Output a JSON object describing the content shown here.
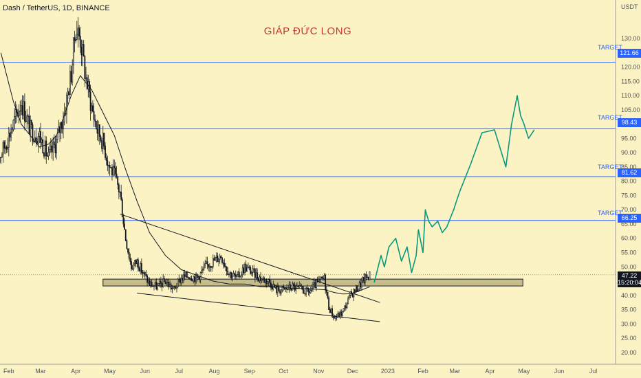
{
  "header": {
    "symbol": "Dash / TetherUS, 1D, BINANCE"
  },
  "watermark": "GIÁP ĐỨC LONG",
  "price_axis": {
    "unit": "USDT",
    "ticks": [
      "130.00",
      "125.00",
      "120.00",
      "115.00",
      "110.00",
      "105.00",
      "100.00",
      "95.00",
      "90.00",
      "85.00",
      "80.00",
      "75.00",
      "70.00",
      "65.00",
      "60.00",
      "55.00",
      "50.00",
      "45.00",
      "40.00",
      "35.00",
      "30.00",
      "25.00",
      "20.00"
    ],
    "last_price": "47.22",
    "countdown": "15:20:04"
  },
  "time_axis": {
    "labels": [
      "Feb",
      "Mar",
      "Apr",
      "May",
      "Jun",
      "Jul",
      "Aug",
      "Sep",
      "Oct",
      "Nov",
      "Dec",
      "2023",
      "Feb",
      "Mar",
      "Apr",
      "May",
      "Jun",
      "Jul"
    ]
  },
  "targets": [
    {
      "label": "TARGET",
      "price": "121.66"
    },
    {
      "label": "TARGET",
      "price": "98.43"
    },
    {
      "label": "TARGET",
      "price": "81.62"
    },
    {
      "label": "TARGET",
      "price": "66.25"
    }
  ],
  "chart_data": {
    "type": "line",
    "title": "",
    "ylim": [
      19,
      137
    ],
    "y_scale": "linear",
    "grid": false,
    "support_zone": {
      "low": 43.3,
      "high": 45.7,
      "from": "2022-04-25",
      "to": "2023-04-30"
    },
    "target_levels": [
      121.66,
      98.43,
      81.62,
      66.25
    ],
    "wedge_upper": {
      "from": [
        "2022-05-10",
        68.5
      ],
      "to": [
        "2022-12-25",
        37.5
      ]
    },
    "wedge_lower": {
      "from": [
        "2022-05-25",
        40.8
      ],
      "to": [
        "2022-12-25",
        30.8
      ]
    },
    "close_series": {
      "name": "",
      "x": [
        "2022-01-20",
        "2022-01-28",
        "2022-02-05",
        "2022-02-12",
        "2022-02-20",
        "2022-02-28",
        "2022-03-08",
        "2022-03-15",
        "2022-03-22",
        "2022-03-28",
        "2022-04-01",
        "2022-04-05",
        "2022-04-10",
        "2022-04-15",
        "2022-04-20",
        "2022-04-25",
        "2022-04-30",
        "2022-05-05",
        "2022-05-10",
        "2022-05-15",
        "2022-05-20",
        "2022-05-25",
        "2022-05-30",
        "2022-06-05",
        "2022-06-12",
        "2022-06-19",
        "2022-06-26",
        "2022-07-03",
        "2022-07-10",
        "2022-07-17",
        "2022-07-24",
        "2022-07-31",
        "2022-08-07",
        "2022-08-14",
        "2022-08-21",
        "2022-08-28",
        "2022-09-04",
        "2022-09-11",
        "2022-09-18",
        "2022-09-25",
        "2022-10-02",
        "2022-10-09",
        "2022-10-16",
        "2022-10-23",
        "2022-10-30",
        "2022-11-06",
        "2022-11-10",
        "2022-11-15",
        "2022-11-22",
        "2022-11-29",
        "2022-12-06",
        "2022-12-12",
        "2022-12-16"
      ],
      "y": [
        86,
        92,
        100,
        108,
        98,
        96,
        88,
        94,
        104,
        118,
        134,
        130,
        116,
        106,
        98,
        94,
        86,
        82,
        76,
        60,
        50,
        52,
        48,
        44,
        43,
        45,
        42,
        46,
        47,
        46,
        50,
        52,
        54,
        48,
        46,
        50,
        48,
        46,
        45,
        42,
        42,
        43,
        42,
        41,
        44,
        46,
        36,
        32,
        34,
        40,
        43,
        46,
        47.22
      ]
    },
    "moving_average": {
      "name": "",
      "x": [
        "2022-01-25",
        "2022-02-05",
        "2022-02-12",
        "2022-02-20",
        "2022-02-28",
        "2022-03-08",
        "2022-03-15",
        "2022-03-22",
        "2022-03-28",
        "2022-04-05",
        "2022-04-15",
        "2022-04-25",
        "2022-05-05",
        "2022-05-15",
        "2022-05-25",
        "2022-06-05",
        "2022-06-19",
        "2022-07-03",
        "2022-07-17",
        "2022-07-31",
        "2022-08-14",
        "2022-08-28",
        "2022-09-11",
        "2022-09-25",
        "2022-10-09",
        "2022-10-23",
        "2022-11-06",
        "2022-11-15",
        "2022-11-22",
        "2022-11-29",
        "2022-12-06",
        "2022-12-16"
      ],
      "y": [
        125,
        108,
        100,
        96,
        92,
        93,
        96,
        103,
        110,
        117,
        112,
        104,
        96,
        84,
        73,
        62,
        54,
        49,
        47,
        45,
        44,
        44,
        43,
        43,
        42.5,
        42.3,
        42,
        41,
        40.5,
        40.6,
        41.5,
        43
      ]
    },
    "forecast_path": {
      "name": "",
      "x": [
        "2022-12-20",
        "2022-12-26",
        "2022-12-29",
        "2023-01-02",
        "2023-01-08",
        "2023-01-13",
        "2023-01-18",
        "2023-01-22",
        "2023-01-26",
        "2023-01-28",
        "2023-02-01",
        "2023-02-03",
        "2023-02-06",
        "2023-02-09",
        "2023-02-14",
        "2023-02-18",
        "2023-02-22",
        "2023-02-28",
        "2023-03-05",
        "2023-03-15",
        "2023-03-25",
        "2023-04-05",
        "2023-04-15",
        "2023-04-20",
        "2023-04-25",
        "2023-04-28",
        "2023-05-01",
        "2023-05-05",
        "2023-05-10"
      ],
      "y": [
        44.5,
        54,
        50,
        57,
        60,
        52,
        57,
        48,
        54,
        63,
        55,
        70,
        66,
        64,
        66,
        62,
        64,
        70,
        76,
        86,
        97,
        98,
        85,
        100,
        110,
        103,
        100,
        95,
        98
      ]
    }
  }
}
